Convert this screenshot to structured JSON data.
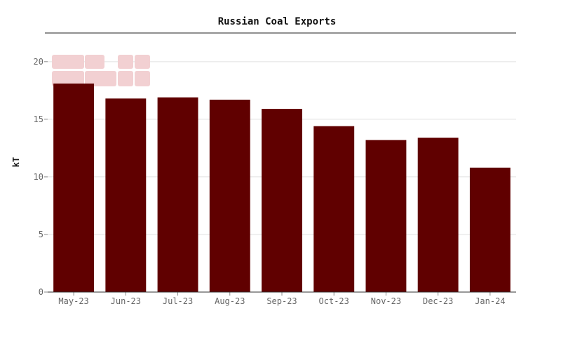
{
  "chart_data": {
    "type": "bar",
    "title": "Russian Coal Exports",
    "xlabel": "",
    "ylabel": "kT",
    "categories": [
      "May-23",
      "Jun-23",
      "Jul-23",
      "Aug-23",
      "Sep-23",
      "Oct-23",
      "Nov-23",
      "Dec-23",
      "Jan-24"
    ],
    "values": [
      18.1,
      16.8,
      16.9,
      16.7,
      15.9,
      14.4,
      13.2,
      13.4,
      10.8
    ],
    "ylim": [
      0,
      22
    ],
    "yticks": [
      0,
      5,
      10,
      15,
      20
    ],
    "grid": true,
    "bar_color": "#600000",
    "legend": "none",
    "watermark_color": "#f2d0d2"
  }
}
